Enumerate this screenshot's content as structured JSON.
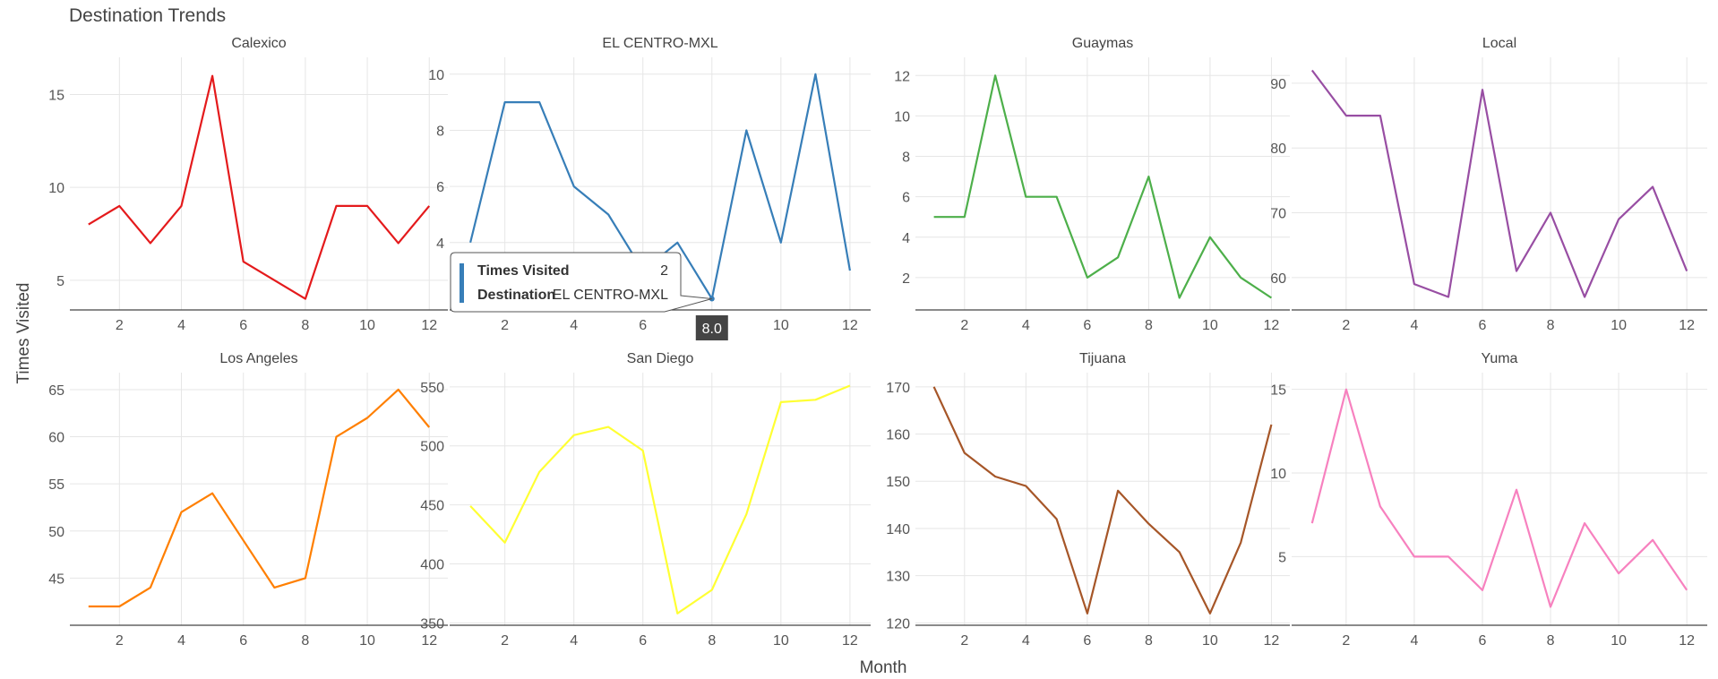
{
  "chart_data": {
    "type": "line",
    "title": "Destination Trends",
    "xlabel": "Month",
    "ylabel": "Times Visited",
    "grid": true,
    "panels": [
      {
        "name": "Calexico",
        "color": "#e41a1c",
        "xlim": [
          0.4,
          12.6
        ],
        "ylim": [
          3.4,
          17.0
        ],
        "yticks": [
          5,
          10,
          15
        ],
        "x": [
          1,
          2,
          3,
          4,
          5,
          6,
          7,
          8,
          9,
          10,
          11,
          12
        ],
        "y": [
          8,
          9,
          7,
          9,
          16,
          6,
          5,
          4,
          9,
          9,
          7,
          9
        ]
      },
      {
        "name": "EL CENTRO-MXL",
        "color": "#377eb8",
        "xlim": [
          0.4,
          12.6
        ],
        "ylim": [
          1.6,
          10.6
        ],
        "yticks": [
          4,
          6,
          8,
          10
        ],
        "x": [
          1,
          2,
          3,
          4,
          5,
          6,
          7,
          8,
          9,
          10,
          11,
          12
        ],
        "y": [
          4,
          9,
          9,
          6,
          5,
          3,
          4,
          2,
          8,
          4,
          10,
          3
        ]
      },
      {
        "name": "Guaymas",
        "color": "#4daf4a",
        "xlim": [
          0.4,
          12.6
        ],
        "ylim": [
          0.4,
          12.9
        ],
        "yticks": [
          2,
          4,
          6,
          8,
          10,
          12
        ],
        "x": [
          1,
          2,
          3,
          4,
          5,
          6,
          7,
          8,
          9,
          10,
          11,
          12
        ],
        "y": [
          5,
          5,
          12,
          6,
          6,
          2,
          3,
          7,
          1,
          4,
          2,
          1
        ]
      },
      {
        "name": "Local",
        "color": "#984ea3",
        "xlim": [
          0.4,
          12.6
        ],
        "ylim": [
          55.0,
          94.0
        ],
        "yticks": [
          60,
          70,
          80,
          90
        ],
        "x": [
          1,
          2,
          3,
          4,
          5,
          6,
          7,
          8,
          9,
          10,
          11,
          12
        ],
        "y": [
          92,
          85,
          85,
          59,
          57,
          89,
          61,
          70,
          57,
          69,
          74,
          61
        ]
      },
      {
        "name": "Los Angeles",
        "color": "#ff7f00",
        "xlim": [
          0.4,
          12.6
        ],
        "ylim": [
          40.0,
          66.8
        ],
        "yticks": [
          45,
          50,
          55,
          60,
          65
        ],
        "x": [
          1,
          2,
          3,
          4,
          5,
          6,
          7,
          8,
          9,
          10,
          11,
          12
        ],
        "y": [
          42,
          42,
          44,
          52,
          54,
          49,
          44,
          45,
          60,
          62,
          65,
          61
        ]
      },
      {
        "name": "San Diego",
        "color": "#ffff33",
        "xlim": [
          0.4,
          12.6
        ],
        "ylim": [
          348.0,
          562.0
        ],
        "yticks": [
          350,
          400,
          450,
          500,
          550
        ],
        "x": [
          1,
          2,
          3,
          4,
          5,
          6,
          7,
          8,
          9,
          10,
          11,
          12
        ],
        "y": [
          449,
          418,
          478,
          509,
          516,
          496,
          358,
          378,
          442,
          537,
          539,
          551
        ]
      },
      {
        "name": "Tijuana",
        "color": "#a65628",
        "xlim": [
          0.4,
          12.6
        ],
        "ylim": [
          119.5,
          173.0
        ],
        "yticks": [
          120,
          130,
          140,
          150,
          160,
          170
        ],
        "x": [
          1,
          2,
          3,
          4,
          5,
          6,
          7,
          8,
          9,
          10,
          11,
          12
        ],
        "y": [
          170,
          156,
          151,
          149,
          142,
          122,
          148,
          141,
          135,
          122,
          137,
          162
        ]
      },
      {
        "name": "Yuma",
        "color": "#f781bf",
        "xlim": [
          0.4,
          12.6
        ],
        "ylim": [
          0.9,
          16.0
        ],
        "yticks": [
          5,
          10,
          15
        ],
        "x": [
          1,
          2,
          3,
          4,
          5,
          6,
          7,
          8,
          9,
          10,
          11,
          12
        ],
        "y": [
          7,
          15,
          8,
          5,
          5,
          3,
          9,
          2,
          7,
          4,
          6,
          3
        ]
      }
    ],
    "xticks": [
      2,
      4,
      6,
      8,
      10,
      12
    ]
  },
  "tooltip": {
    "label_value": "Times Visited",
    "value": "2",
    "label_category": "Destination",
    "category": "EL CENTRO-MXL",
    "x_value": "8.0",
    "panel_index": 1,
    "x": 8,
    "y": 2
  }
}
